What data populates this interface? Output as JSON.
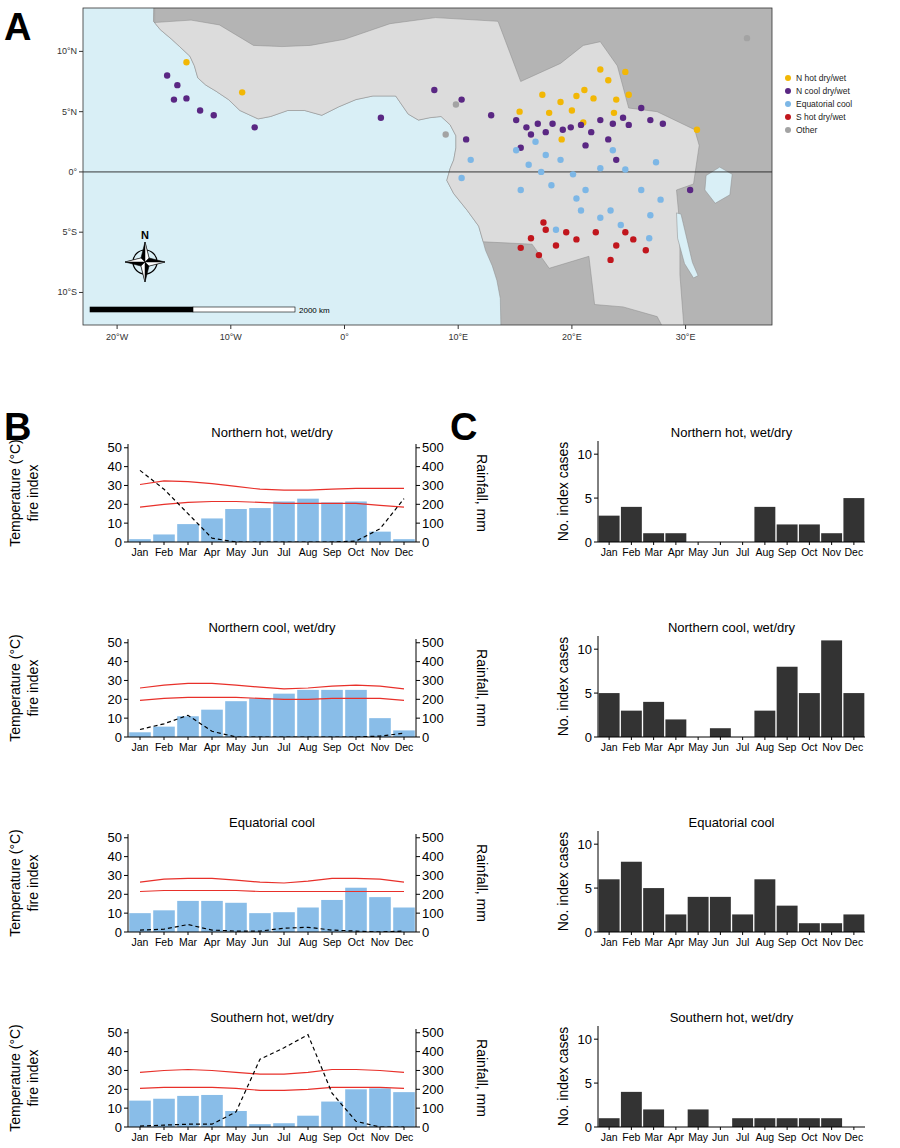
{
  "panel_labels": [
    "A",
    "B",
    "C"
  ],
  "chart_data": [
    {
      "type": "scatter",
      "xlim": [
        -23,
        37.6
      ],
      "ylim": [
        -12.7,
        13.6
      ],
      "xticks": [
        {
          "value": -20,
          "label": "20°W"
        },
        {
          "value": -10,
          "label": "10°W"
        },
        {
          "value": 0,
          "label": "0°"
        },
        {
          "value": 10,
          "label": "10°E"
        },
        {
          "value": 20,
          "label": "20°E"
        },
        {
          "value": 30,
          "label": "30°E"
        }
      ],
      "yticks": [
        {
          "value": 10,
          "label": "10°N"
        },
        {
          "value": 5,
          "label": "5°N"
        },
        {
          "value": 0,
          "label": "0°"
        },
        {
          "value": -5,
          "label": "5°S"
        },
        {
          "value": -10,
          "label": "10°S"
        }
      ],
      "legend": "right",
      "scale_label": "2000 km",
      "compass_label": "N",
      "series": [
        {
          "name": "N hot dry/wet",
          "color": "#f2b705",
          "x": [
            -13.9,
            -9.0,
            15.4,
            17.4,
            18.0,
            19.0,
            20.0,
            21.1,
            21.9,
            22.5,
            23.2,
            23.9,
            24.7,
            25.0,
            23.7,
            21.0,
            19.1,
            31.0,
            20.4
          ],
          "values": [
            9.1,
            6.6,
            5.0,
            6.4,
            4.9,
            5.8,
            5.1,
            6.8,
            6.1,
            8.5,
            7.6,
            6.0,
            8.3,
            6.4,
            4.9,
            4.1,
            2.7,
            3.5,
            6.3
          ]
        },
        {
          "name": "N cool dry/wet",
          "color": "#5a2783",
          "x": [
            -15.6,
            -14.7,
            -15.0,
            -13.9,
            -12.7,
            -11.5,
            -7.9,
            3.2,
            7.9,
            10.3,
            10.7,
            12.9,
            15.1,
            16.0,
            16.4,
            17.0,
            17.7,
            18.3,
            19.2,
            19.9,
            20.8,
            21.7,
            22.5,
            23.6,
            24.5,
            25.0,
            26.1,
            26.9,
            28.0,
            23.2,
            21.2,
            23.9,
            30.4,
            15.5
          ],
          "values": [
            8.0,
            7.2,
            6.0,
            6.1,
            5.1,
            4.7,
            3.7,
            4.5,
            6.8,
            6.0,
            2.7,
            4.7,
            4.3,
            3.7,
            3.1,
            4.0,
            3.3,
            4.0,
            3.5,
            3.7,
            3.9,
            3.3,
            4.3,
            4.0,
            4.5,
            3.9,
            5.3,
            4.3,
            4.0,
            2.7,
            2.2,
            1.0,
            -1.5,
            2.0
          ]
        },
        {
          "name": "Equatorial cool",
          "color": "#7db7e6",
          "x": [
            10.3,
            11.1,
            15.1,
            16.2,
            17.3,
            18.2,
            19.0,
            20.1,
            21.2,
            22.5,
            23.6,
            24.7,
            26.1,
            27.4,
            27.8,
            20.8,
            22.5,
            24.3,
            18.6,
            20.4,
            16.8,
            17.7,
            26.9,
            23.4,
            15.5,
            26.8
          ],
          "values": [
            -0.5,
            1.0,
            1.8,
            0.6,
            0.0,
            -1.1,
            1.0,
            -0.2,
            -1.5,
            0.3,
            1.8,
            0.2,
            -1.5,
            0.8,
            -2.3,
            -3.2,
            -3.8,
            -4.4,
            -4.8,
            -2.2,
            2.5,
            1.4,
            -3.6,
            -3.2,
            -1.5,
            -5.5
          ]
        },
        {
          "name": "S hot dry/wet",
          "color": "#c1161d",
          "x": [
            15.5,
            16.4,
            17.1,
            17.7,
            18.6,
            19.5,
            20.4,
            22.1,
            23.4,
            24.7,
            25.4,
            26.5,
            23.9,
            17.5
          ],
          "values": [
            -6.3,
            -5.5,
            -6.9,
            -4.8,
            -6.1,
            -5.0,
            -5.6,
            -5.0,
            -7.3,
            -5.0,
            -5.6,
            -6.5,
            -6.1,
            -4.2
          ]
        },
        {
          "name": "Other",
          "color": "#a3a3a3",
          "x": [
            9.8,
            8.9,
            35.4
          ],
          "values": [
            5.6,
            3.1,
            11.1
          ]
        }
      ]
    },
    {
      "type": "combo",
      "title": "Northern hot, wet/dry",
      "categories": [
        "Jan",
        "Feb",
        "Mar",
        "Apr",
        "May",
        "Jun",
        "Jul",
        "Aug",
        "Sep",
        "Oct",
        "Nov",
        "Dec"
      ],
      "ylabel": [
        "Temperature (°C)",
        "fire index"
      ],
      "y2label": "Rainfall, mm",
      "ylim": [
        0,
        52
      ],
      "yticks": [
        0,
        10,
        20,
        30,
        40,
        50
      ],
      "y2lim": [
        0,
        520
      ],
      "y2ticks": [
        0,
        100,
        200,
        300,
        400,
        500
      ],
      "series": [
        {
          "type": "bar",
          "axis": "y2",
          "color": "#89bde8",
          "values": [
            15,
            40,
            95,
            125,
            175,
            180,
            215,
            230,
            210,
            215,
            55,
            15
          ]
        },
        {
          "type": "line",
          "color": "#e8302a",
          "line_style": "solid",
          "values": [
            30.5,
            32.5,
            32,
            31,
            29.5,
            28,
            27.5,
            27.5,
            28,
            28.5,
            28.5,
            28.5
          ]
        },
        {
          "type": "line",
          "color": "#e8302a",
          "line_style": "solid",
          "values": [
            18.5,
            20,
            21,
            21.5,
            21.5,
            21,
            20.5,
            20.5,
            20.5,
            20.5,
            19.5,
            18.5
          ]
        },
        {
          "type": "line",
          "color": "#000000",
          "line_style": "dashed",
          "values": [
            38,
            28,
            15,
            2,
            0,
            0,
            0,
            0,
            0,
            0.5,
            7,
            23
          ]
        }
      ]
    },
    {
      "type": "combo",
      "title": "Northern cool, wet/dry",
      "categories": [
        "Jan",
        "Feb",
        "Mar",
        "Apr",
        "May",
        "Jun",
        "Jul",
        "Aug",
        "Sep",
        "Oct",
        "Nov",
        "Dec"
      ],
      "ylabel": [
        "Temperature (°C)",
        "fire index"
      ],
      "y2label": "Rainfall, mm",
      "ylim": [
        0,
        52
      ],
      "yticks": [
        0,
        10,
        20,
        30,
        40,
        50
      ],
      "y2lim": [
        0,
        520
      ],
      "y2ticks": [
        0,
        100,
        200,
        300,
        400,
        500
      ],
      "series": [
        {
          "type": "bar",
          "axis": "y2",
          "color": "#89bde8",
          "values": [
            25,
            55,
            110,
            145,
            190,
            205,
            230,
            250,
            250,
            250,
            100,
            35
          ]
        },
        {
          "type": "line",
          "color": "#e8302a",
          "line_style": "solid",
          "values": [
            26,
            27.5,
            28.5,
            28.5,
            27.5,
            26.5,
            25.5,
            26,
            27,
            27.5,
            27,
            25.5
          ]
        },
        {
          "type": "line",
          "color": "#e8302a",
          "line_style": "solid",
          "values": [
            19.5,
            20.5,
            21,
            21,
            21,
            20.5,
            20,
            20,
            20.5,
            20.5,
            20.5,
            19.5
          ]
        },
        {
          "type": "line",
          "color": "#000000",
          "line_style": "dashed",
          "values": [
            4,
            7,
            11.5,
            3,
            0,
            0,
            0,
            0,
            0,
            0,
            0.5,
            2
          ]
        }
      ]
    },
    {
      "type": "combo",
      "title": "Equatorial cool",
      "categories": [
        "Jan",
        "Feb",
        "Mar",
        "Apr",
        "May",
        "Jun",
        "Jul",
        "Aug",
        "Sep",
        "Oct",
        "Nov",
        "Dec"
      ],
      "ylabel": [
        "Temperature (°C)",
        "fire index"
      ],
      "y2label": "Rainfall, mm",
      "ylim": [
        0,
        52
      ],
      "yticks": [
        0,
        10,
        20,
        30,
        40,
        50
      ],
      "y2lim": [
        0,
        520
      ],
      "y2ticks": [
        0,
        100,
        200,
        300,
        400,
        500
      ],
      "series": [
        {
          "type": "bar",
          "axis": "y2",
          "color": "#89bde8",
          "values": [
            100,
            115,
            165,
            165,
            155,
            100,
            105,
            130,
            170,
            235,
            185,
            130
          ]
        },
        {
          "type": "line",
          "color": "#e8302a",
          "line_style": "solid",
          "values": [
            26.5,
            28,
            28.5,
            28.5,
            27.5,
            26.5,
            26,
            27,
            28.5,
            28.5,
            28,
            26.5
          ]
        },
        {
          "type": "line",
          "color": "#e8302a",
          "line_style": "solid",
          "values": [
            21.5,
            22,
            22,
            22,
            22,
            21.5,
            21.5,
            21.5,
            21.5,
            21.5,
            21.5,
            21.5
          ]
        },
        {
          "type": "line",
          "color": "#000000",
          "line_style": "dashed",
          "values": [
            1,
            1.5,
            4,
            1,
            0.5,
            0.5,
            2,
            2.5,
            1,
            0.5,
            0,
            0.5
          ]
        }
      ]
    },
    {
      "type": "combo",
      "title": "Southern hot, wet/dry",
      "categories": [
        "Jan",
        "Feb",
        "Mar",
        "Apr",
        "May",
        "Jun",
        "Jul",
        "Aug",
        "Sep",
        "Oct",
        "Nov",
        "Dec"
      ],
      "ylabel": [
        "Temperature (°C)",
        "fire index"
      ],
      "y2label": "Rainfall, mm",
      "ylim": [
        0,
        52
      ],
      "yticks": [
        0,
        10,
        20,
        30,
        40,
        50
      ],
      "y2lim": [
        0,
        520
      ],
      "y2ticks": [
        0,
        100,
        200,
        300,
        400,
        500
      ],
      "series": [
        {
          "type": "bar",
          "axis": "y2",
          "color": "#89bde8",
          "values": [
            140,
            150,
            165,
            170,
            85,
            15,
            20,
            60,
            135,
            200,
            205,
            185
          ]
        },
        {
          "type": "line",
          "color": "#e8302a",
          "line_style": "solid",
          "values": [
            29,
            30,
            30.5,
            30,
            29,
            28,
            28,
            29,
            30.5,
            30.5,
            30,
            29
          ]
        },
        {
          "type": "line",
          "color": "#e8302a",
          "line_style": "solid",
          "values": [
            20.5,
            21,
            21,
            21,
            20.5,
            19.5,
            19.5,
            20,
            21,
            21,
            21,
            20.5
          ]
        },
        {
          "type": "line",
          "color": "#000000",
          "line_style": "dashed",
          "values": [
            0.5,
            1,
            1.5,
            1.5,
            8,
            36,
            42,
            49,
            18,
            3,
            0,
            0
          ]
        }
      ]
    },
    {
      "type": "bar",
      "title": "Northern hot, wet/dry",
      "categories": [
        "Jan",
        "Feb",
        "Mar",
        "Apr",
        "May",
        "Jun",
        "Jul",
        "Aug",
        "Sep",
        "Oct",
        "Nov",
        "Dec"
      ],
      "ylabel": "No. index cases",
      "ylim": [
        0,
        11.5
      ],
      "yticks": [
        0,
        5,
        10
      ],
      "color": "#333333",
      "values": [
        3,
        4,
        1,
        1,
        0,
        0,
        0,
        4,
        2,
        2,
        1,
        5
      ]
    },
    {
      "type": "bar",
      "title": "Northern cool, wet/dry",
      "categories": [
        "Jan",
        "Feb",
        "Mar",
        "Apr",
        "May",
        "Jun",
        "Jul",
        "Aug",
        "Sep",
        "Oct",
        "Nov",
        "Dec"
      ],
      "ylabel": "No. index cases",
      "ylim": [
        0,
        11.5
      ],
      "yticks": [
        0,
        5,
        10
      ],
      "color": "#333333",
      "values": [
        5,
        3,
        4,
        2,
        0,
        1,
        0,
        3,
        8,
        5,
        11,
        5
      ]
    },
    {
      "type": "bar",
      "title": "Equatorial cool",
      "categories": [
        "Jan",
        "Feb",
        "Mar",
        "Apr",
        "May",
        "Jun",
        "Jul",
        "Aug",
        "Sep",
        "Oct",
        "Nov",
        "Dec"
      ],
      "ylabel": "No. index cases",
      "ylim": [
        0,
        11.5
      ],
      "yticks": [
        0,
        5,
        10
      ],
      "color": "#333333",
      "values": [
        6,
        8,
        5,
        2,
        4,
        4,
        2,
        6,
        3,
        1,
        1,
        2
      ]
    },
    {
      "type": "bar",
      "title": "Southern hot, wet/dry",
      "categories": [
        "Jan",
        "Feb",
        "Mar",
        "Apr",
        "May",
        "Jun",
        "Jul",
        "Aug",
        "Sep",
        "Oct",
        "Nov",
        "Dec"
      ],
      "ylabel": "No. index cases",
      "ylim": [
        0,
        11.5
      ],
      "yticks": [
        0,
        5,
        10
      ],
      "color": "#333333",
      "values": [
        1,
        4,
        2,
        0,
        2,
        0,
        1,
        1,
        1,
        1,
        1,
        0
      ]
    }
  ]
}
